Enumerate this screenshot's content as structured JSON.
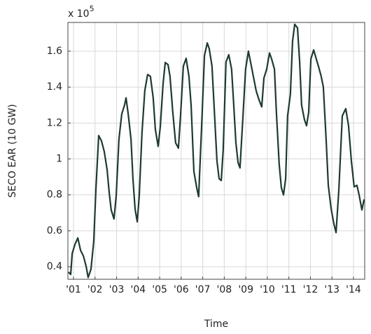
{
  "chart_data": {
    "type": "line",
    "multiplier": {
      "base": "x 10",
      "exponent": "5"
    },
    "x_label": "Time",
    "y_label": "SECO EAR (10 GW)",
    "color": "#1e3a2f",
    "grid": true,
    "xlim": [
      2000.74,
      2014.52
    ],
    "ylim": [
      0.33,
      1.76
    ],
    "xticks": [
      {
        "value": 2001,
        "label": "'01"
      },
      {
        "value": 2002,
        "label": "'02"
      },
      {
        "value": 2003,
        "label": "'03"
      },
      {
        "value": 2004,
        "label": "'04"
      },
      {
        "value": 2005,
        "label": "'05"
      },
      {
        "value": 2006,
        "label": "'06"
      },
      {
        "value": 2007,
        "label": "'07"
      },
      {
        "value": 2008,
        "label": "'08"
      },
      {
        "value": 2009,
        "label": "'09"
      },
      {
        "value": 2010,
        "label": "'10"
      },
      {
        "value": 2011,
        "label": "'11"
      },
      {
        "value": 2012,
        "label": "'12"
      },
      {
        "value": 2013,
        "label": "'13"
      },
      {
        "value": 2014,
        "label": "'14"
      }
    ],
    "yticks": [
      0.4,
      0.6,
      0.8,
      1,
      1.2,
      1.4,
      1.6
    ],
    "x": [
      2000.77,
      2000.87,
      2000.94,
      2001.07,
      2001.2,
      2001.33,
      2001.46,
      2001.59,
      2001.68,
      2001.81,
      2001.94,
      2002.04,
      2002.17,
      2002.3,
      2002.43,
      2002.56,
      2002.66,
      2002.75,
      2002.88,
      2002.98,
      2003.11,
      2003.24,
      2003.37,
      2003.44,
      2003.54,
      2003.67,
      2003.76,
      2003.86,
      2003.96,
      2004.05,
      2004.18,
      2004.31,
      2004.44,
      2004.57,
      2004.7,
      2004.8,
      2004.93,
      2005.03,
      2005.16,
      2005.26,
      2005.39,
      2005.48,
      2005.61,
      2005.74,
      2005.87,
      2005.97,
      2006.1,
      2006.23,
      2006.36,
      2006.46,
      2006.59,
      2006.72,
      2006.81,
      2006.95,
      2007.08,
      2007.21,
      2007.3,
      2007.43,
      2007.56,
      2007.66,
      2007.76,
      2007.86,
      2007.95,
      2008.08,
      2008.21,
      2008.34,
      2008.44,
      2008.54,
      2008.64,
      2008.73,
      2008.86,
      2008.99,
      2009.12,
      2009.22,
      2009.35,
      2009.48,
      2009.61,
      2009.74,
      2009.84,
      2009.97,
      2010.1,
      2010.2,
      2010.33,
      2010.42,
      2010.55,
      2010.65,
      2010.75,
      2010.85,
      2010.94,
      2011.07,
      2011.17,
      2011.27,
      2011.4,
      2011.5,
      2011.59,
      2011.72,
      2011.82,
      2011.92,
      2012.02,
      2012.15,
      2012.24,
      2012.37,
      2012.5,
      2012.6,
      2012.73,
      2012.83,
      2012.96,
      2013.09,
      2013.19,
      2013.32,
      2013.48,
      2013.64,
      2013.77,
      2013.9,
      2014.03,
      2014.16,
      2014.26,
      2014.39,
      2014.49
    ],
    "values": [
      0.37,
      0.357,
      0.474,
      0.525,
      0.56,
      0.49,
      0.46,
      0.4,
      0.34,
      0.385,
      0.54,
      0.83,
      1.13,
      1.1,
      1.04,
      0.94,
      0.81,
      0.716,
      0.666,
      0.79,
      1.11,
      1.25,
      1.3,
      1.34,
      1.25,
      1.11,
      0.89,
      0.72,
      0.65,
      0.79,
      1.146,
      1.38,
      1.47,
      1.46,
      1.34,
      1.165,
      1.07,
      1.18,
      1.42,
      1.537,
      1.525,
      1.46,
      1.26,
      1.09,
      1.06,
      1.24,
      1.517,
      1.56,
      1.46,
      1.3,
      0.93,
      0.84,
      0.79,
      1.185,
      1.576,
      1.646,
      1.615,
      1.517,
      1.22,
      0.99,
      0.89,
      0.88,
      1.05,
      1.54,
      1.58,
      1.5,
      1.3,
      1.09,
      0.98,
      0.95,
      1.22,
      1.5,
      1.6,
      1.54,
      1.46,
      1.38,
      1.33,
      1.29,
      1.45,
      1.5,
      1.59,
      1.556,
      1.5,
      1.26,
      0.97,
      0.84,
      0.8,
      0.89,
      1.24,
      1.36,
      1.654,
      1.75,
      1.73,
      1.54,
      1.3,
      1.22,
      1.185,
      1.26,
      1.556,
      1.607,
      1.57,
      1.517,
      1.46,
      1.4,
      1.107,
      0.853,
      0.724,
      0.638,
      0.59,
      0.83,
      1.24,
      1.28,
      1.185,
      0.99,
      0.845,
      0.853,
      0.8,
      0.716,
      0.775
    ]
  }
}
